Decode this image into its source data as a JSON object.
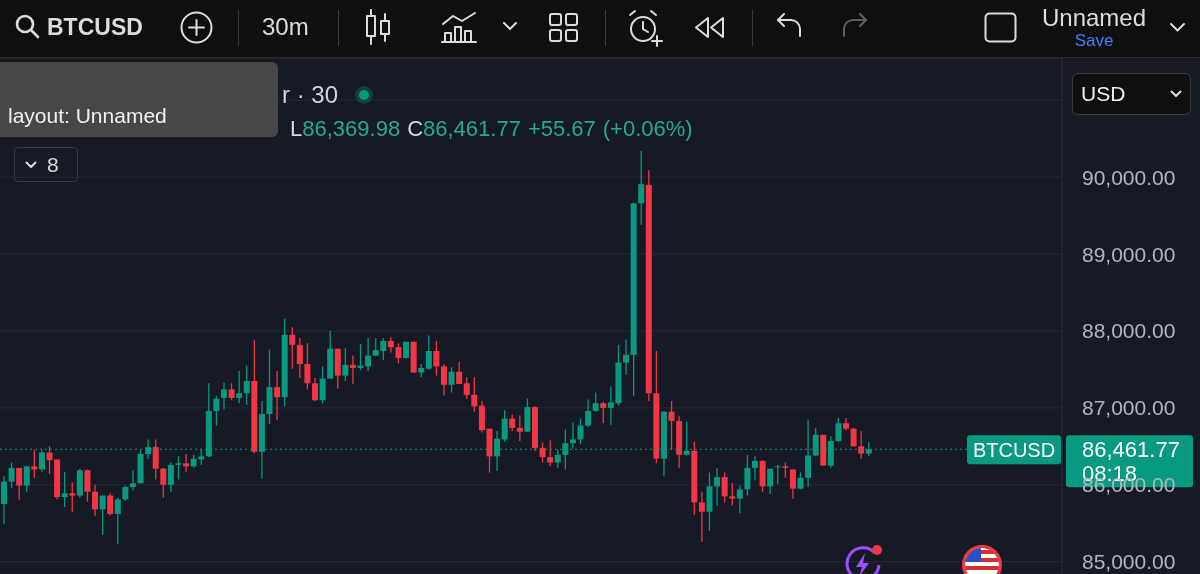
{
  "chart_data": {
    "type": "candlestick",
    "title": "BTCUSD",
    "categories": [
      null,
      null,
      null,
      null,
      null,
      null,
      null,
      null,
      null,
      null,
      null,
      null,
      null,
      null,
      null,
      null,
      null,
      null,
      null,
      null,
      null,
      null,
      null,
      null,
      null,
      null,
      null,
      null,
      null,
      null,
      null,
      null,
      null,
      null,
      null,
      null,
      null,
      null,
      null,
      null,
      null,
      null,
      null,
      null,
      null,
      null,
      null,
      null,
      null,
      null,
      null,
      null,
      null,
      null,
      null,
      null,
      null,
      null,
      null,
      null,
      null,
      null,
      null,
      null,
      null,
      null,
      null,
      null,
      null,
      null,
      null,
      null,
      null,
      null,
      null,
      null,
      null,
      null,
      null,
      null,
      null,
      null,
      null,
      null,
      null,
      null,
      null,
      null,
      null,
      null,
      null,
      null,
      null,
      null,
      null,
      null,
      null,
      null,
      null,
      null,
      null,
      null,
      null,
      null,
      null,
      null,
      null,
      null,
      null,
      null,
      null,
      null,
      null,
      null,
      null,
      null,
      null,
      null,
      null,
      null,
      null,
      null,
      null,
      null,
      null,
      null,
      null,
      null,
      null,
      null,
      null,
      null,
      null,
      null,
      null,
      null,
      null,
      null,
      null,
      null
    ],
    "ohlc": [
      [
        85750,
        86110,
        85490,
        86040
      ],
      [
        86040,
        86290,
        85960,
        86220
      ],
      [
        86220,
        86220,
        85800,
        85990
      ],
      [
        85990,
        86240,
        85910,
        86240
      ],
      [
        86240,
        86450,
        86090,
        86200
      ],
      [
        86200,
        86450,
        86170,
        86420
      ],
      [
        86420,
        86500,
        86140,
        86320
      ],
      [
        86330,
        86330,
        85810,
        85840
      ],
      [
        85840,
        86170,
        85710,
        85890
      ],
      [
        85890,
        86030,
        85650,
        85860
      ],
      [
        85860,
        86210,
        85830,
        86190
      ],
      [
        86190,
        86200,
        85780,
        85910
      ],
      [
        85910,
        86000,
        85590,
        85680
      ],
      [
        85680,
        85860,
        85350,
        85860
      ],
      [
        85860,
        85890,
        85600,
        85620
      ],
      [
        85620,
        85830,
        85230,
        85810
      ],
      [
        85810,
        85990,
        85790,
        85970
      ],
      [
        85970,
        86190,
        85930,
        86020
      ],
      [
        86020,
        86450,
        86020,
        86400
      ],
      [
        86400,
        86590,
        86340,
        86490
      ],
      [
        86490,
        86590,
        86070,
        86210
      ],
      [
        86210,
        86220,
        85830,
        86000
      ],
      [
        86000,
        86290,
        85910,
        86260
      ],
      [
        86260,
        86370,
        86070,
        86280
      ],
      [
        86280,
        86400,
        86170,
        86240
      ],
      [
        86240,
        86390,
        86220,
        86340
      ],
      [
        86330,
        86470,
        86260,
        86370
      ],
      [
        86370,
        87320,
        86360,
        86960
      ],
      [
        86960,
        87160,
        86770,
        87120
      ],
      [
        87130,
        87330,
        86980,
        87240
      ],
      [
        87240,
        87320,
        87100,
        87130
      ],
      [
        87130,
        87480,
        87060,
        87190
      ],
      [
        87190,
        87550,
        87040,
        87350
      ],
      [
        87350,
        87880,
        86410,
        86430
      ],
      [
        86430,
        87090,
        86080,
        86920
      ],
      [
        86920,
        87760,
        86790,
        87270
      ],
      [
        87270,
        87480,
        86840,
        87140
      ],
      [
        87140,
        88160,
        87020,
        87950
      ],
      [
        87950,
        88050,
        87510,
        87820
      ],
      [
        87820,
        87910,
        87390,
        87570
      ],
      [
        87570,
        87840,
        87240,
        87320
      ],
      [
        87320,
        87390,
        87090,
        87100
      ],
      [
        87100,
        87540,
        87060,
        87380
      ],
      [
        87380,
        88000,
        87380,
        87770
      ],
      [
        87770,
        87770,
        87250,
        87420
      ],
      [
        87420,
        87780,
        87350,
        87560
      ],
      [
        87560,
        87680,
        87310,
        87520
      ],
      [
        87520,
        87830,
        87490,
        87550
      ],
      [
        87540,
        87910,
        87480,
        87680
      ],
      [
        87680,
        87910,
        87670,
        87750
      ],
      [
        87740,
        87910,
        87620,
        87870
      ],
      [
        87870,
        87920,
        87720,
        87790
      ],
      [
        87790,
        87840,
        87580,
        87650
      ],
      [
        87650,
        87860,
        87640,
        87860
      ],
      [
        87860,
        87860,
        87460,
        87460
      ],
      [
        87460,
        87570,
        87400,
        87520
      ],
      [
        87510,
        87940,
        87500,
        87740
      ],
      [
        87740,
        87870,
        87420,
        87540
      ],
      [
        87540,
        87570,
        87160,
        87300
      ],
      [
        87300,
        87530,
        87200,
        87470
      ],
      [
        87470,
        87600,
        87310,
        87310
      ],
      [
        87320,
        87400,
        87120,
        87170
      ],
      [
        87170,
        87400,
        86950,
        87020
      ],
      [
        87030,
        87090,
        86680,
        86710
      ],
      [
        86730,
        86730,
        86160,
        86370
      ],
      [
        86370,
        86700,
        86180,
        86600
      ],
      [
        86590,
        86970,
        86560,
        86860
      ],
      [
        86860,
        86910,
        86700,
        86740
      ],
      [
        86740,
        86900,
        86570,
        86690
      ],
      [
        86690,
        87120,
        86690,
        87010
      ],
      [
        87010,
        87020,
        86440,
        86480
      ],
      [
        86480,
        86550,
        86290,
        86360
      ],
      [
        86360,
        86580,
        86240,
        86290
      ],
      [
        86290,
        86460,
        86220,
        86390
      ],
      [
        86390,
        86720,
        86200,
        86540
      ],
      [
        86540,
        86810,
        86470,
        86590
      ],
      [
        86590,
        86860,
        86530,
        86770
      ],
      [
        86770,
        87110,
        86750,
        86960
      ],
      [
        86960,
        87200,
        86950,
        87060
      ],
      [
        87060,
        87080,
        86800,
        87000
      ],
      [
        87000,
        87280,
        86780,
        87070
      ],
      [
        87060,
        87820,
        87030,
        87590
      ],
      [
        87590,
        87890,
        87430,
        87690
      ],
      [
        87690,
        89670,
        87150,
        89660
      ],
      [
        89660,
        90340,
        89380,
        89910
      ],
      [
        89900,
        90090,
        87090,
        87190
      ],
      [
        87190,
        87740,
        86280,
        86340
      ],
      [
        86340,
        86960,
        86110,
        86950
      ],
      [
        86950,
        87090,
        86460,
        86830
      ],
      [
        86830,
        86890,
        86220,
        86390
      ],
      [
        86390,
        86820,
        86380,
        86440
      ],
      [
        86440,
        86560,
        85610,
        85770
      ],
      [
        85770,
        85910,
        85260,
        85650
      ],
      [
        85650,
        86160,
        85400,
        85980
      ],
      [
        85980,
        86220,
        85730,
        86100
      ],
      [
        86100,
        86160,
        85770,
        85850
      ],
      [
        85850,
        86020,
        85730,
        85820
      ],
      [
        85820,
        85990,
        85630,
        85940
      ],
      [
        85940,
        86390,
        85860,
        86220
      ],
      [
        86220,
        86370,
        86060,
        86310
      ],
      [
        86310,
        86320,
        85910,
        85980
      ],
      [
        85980,
        86210,
        85880,
        86210
      ],
      [
        86230,
        86260,
        86010,
        86240
      ],
      [
        86240,
        86290,
        86090,
        86220
      ],
      [
        86200,
        86200,
        85820,
        85950
      ],
      [
        85950,
        86160,
        85940,
        86090
      ],
      [
        86090,
        86850,
        85970,
        86380
      ],
      [
        86380,
        86740,
        86370,
        86650
      ],
      [
        86650,
        86650,
        86250,
        86250
      ],
      [
        86250,
        86630,
        86220,
        86570
      ],
      [
        86570,
        86870,
        86560,
        86800
      ],
      [
        86800,
        86870,
        86710,
        86730
      ],
      [
        86730,
        86740,
        86500,
        86500
      ],
      [
        86500,
        86700,
        86340,
        86406.1
      ],
      [
        86406.1,
        86560,
        86369.98,
        86461.77
      ],
      null,
      null,
      null,
      null,
      null,
      null,
      null,
      null,
      null,
      null,
      null,
      null,
      null,
      null,
      null,
      null,
      null,
      null,
      null,
      null,
      null,
      null,
      null,
      null,
      null
    ],
    "colors": [
      "#089981",
      "#089981",
      "#f23645",
      "#089981",
      "#f23645",
      "#089981",
      "#f23645",
      "#f23645",
      "#089981",
      "#f23645",
      "#089981",
      "#f23645",
      "#f23645",
      "#089981",
      "#f23645",
      "#089981",
      "#089981",
      "#089981",
      "#089981",
      "#089981",
      "#f23645",
      "#f23645",
      "#089981",
      "#089981",
      "#f23645",
      "#089981",
      "#089981",
      "#089981",
      "#089981",
      "#089981",
      "#f23645",
      "#089981",
      "#089981",
      "#f23645",
      "#089981",
      "#089981",
      "#f23645",
      "#089981",
      "#f23645",
      "#f23645",
      "#f23645",
      "#f23645",
      "#089981",
      "#089981",
      "#f23645",
      "#089981",
      "#f23645",
      "#089981",
      "#089981",
      "#089981",
      "#089981",
      "#f23645",
      "#f23645",
      "#089981",
      "#f23645",
      "#089981",
      "#089981",
      "#f23645",
      "#f23645",
      "#089981",
      "#f23645",
      "#f23645",
      "#f23645",
      "#f23645",
      "#f23645",
      "#089981",
      "#089981",
      "#f23645",
      "#f23645",
      "#089981",
      "#f23645",
      "#f23645",
      "#f23645",
      "#089981",
      "#089981",
      "#089981",
      "#089981",
      "#089981",
      "#089981",
      "#f23645",
      "#089981",
      "#089981",
      "#089981",
      "#089981",
      "#089981",
      "#f23645",
      "#f23645",
      "#089981",
      "#f23645",
      "#f23645",
      "#089981",
      "#f23645",
      "#f23645",
      "#089981",
      "#089981",
      "#f23645",
      "#f23645",
      "#089981",
      "#089981",
      "#089981",
      "#f23645",
      "#089981",
      "#089981",
      "#f23645",
      "#f23645",
      "#089981",
      "#089981",
      "#089981",
      "#f23645",
      "#089981",
      "#089981",
      "#f23645",
      "#f23645",
      "#f23645",
      "#089981",
      null,
      null,
      null,
      null,
      null,
      null,
      null,
      null,
      null,
      null,
      null,
      null,
      null,
      null,
      null,
      null,
      null,
      null,
      null,
      null,
      null,
      null,
      null,
      null,
      null
    ],
    "ylim": [
      84840,
      91550
    ],
    "yticks": [
      {
        "value": 85000,
        "label": "85,000.00"
      },
      {
        "value": 86000,
        "label": "86,000.00"
      },
      {
        "value": 87000,
        "label": "87,000.00"
      },
      {
        "value": 88000,
        "label": "88,000.00"
      },
      {
        "value": 89000,
        "label": "89,000.00"
      },
      {
        "value": 90000,
        "label": "90,000.00"
      },
      {
        "value": 91000,
        "label": null
      }
    ],
    "grid": "y",
    "tick_labels": "y",
    "ref_lines": [
      {
        "axis": "y",
        "value": 86461.77,
        "label": "BTCUSD",
        "color": "#089981",
        "line_style": "dotted"
      }
    ],
    "annotations": [
      "30m",
      "Unnamed",
      "Save",
      "r · 30",
      "L86,369.98 C86,461.77 +55.67 (+0.06%)",
      "8",
      "USD",
      "layout: Unnamed",
      "86,461.77",
      "08:18"
    ]
  }
}
